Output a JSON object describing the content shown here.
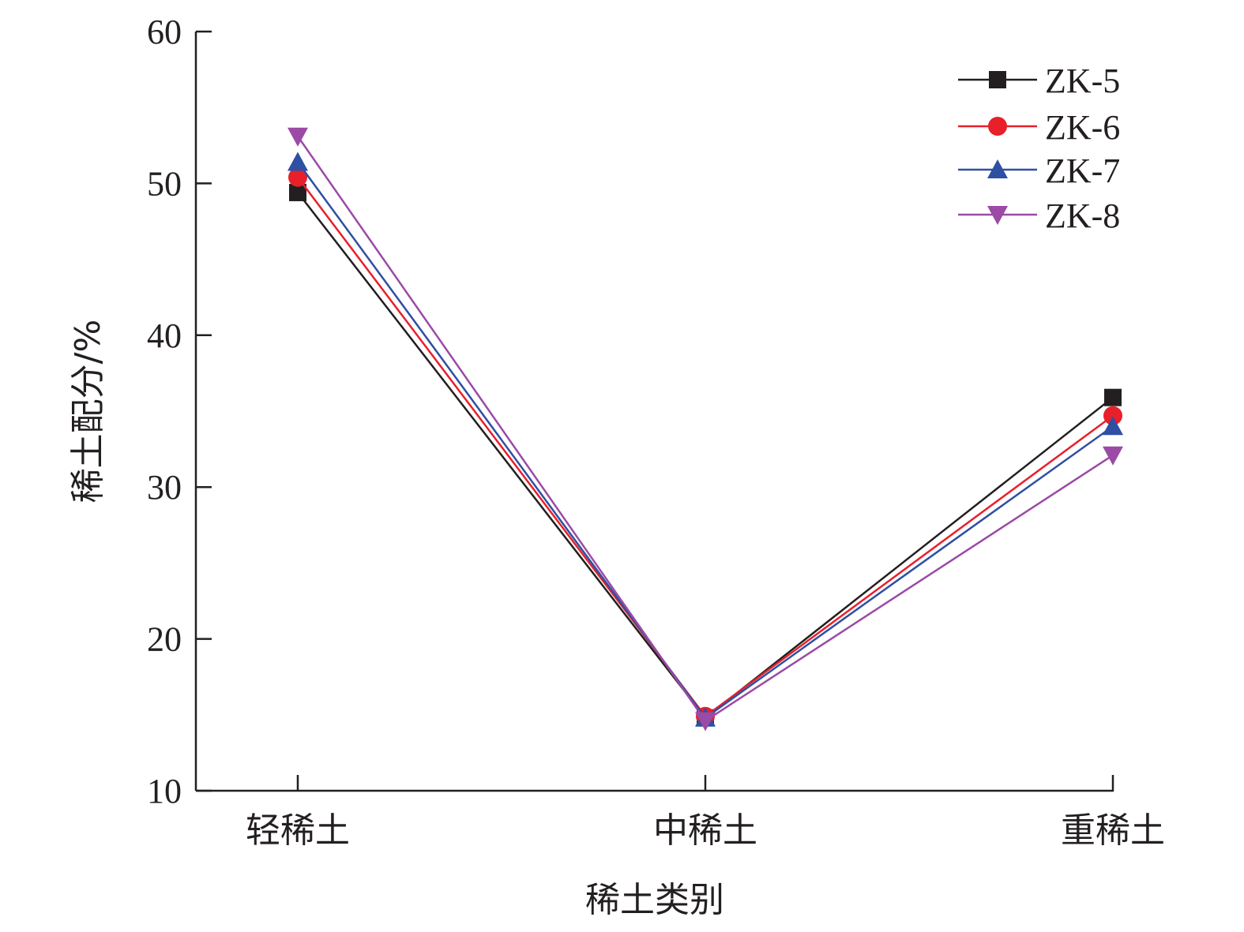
{
  "chart_data": {
    "type": "line",
    "title": "",
    "xlabel": "稀土类别",
    "ylabel": "稀土配分/%",
    "categories": [
      "轻稀土",
      "中稀土",
      "重稀土"
    ],
    "ylim": [
      10,
      60
    ],
    "yticks": [
      10,
      20,
      30,
      40,
      50,
      60
    ],
    "grid": false,
    "legend_position": "top-right",
    "series": [
      {
        "name": "ZK-5",
        "values": [
          49.4,
          14.8,
          35.9
        ],
        "color": "#231f20",
        "marker": "square"
      },
      {
        "name": "ZK-6",
        "values": [
          50.4,
          14.9,
          34.7
        ],
        "color": "#e8202a",
        "marker": "circle"
      },
      {
        "name": "ZK-7",
        "values": [
          51.4,
          14.8,
          34.0
        ],
        "color": "#2e4fa3",
        "marker": "triangle-up"
      },
      {
        "name": "ZK-8",
        "values": [
          53.1,
          14.6,
          32.1
        ],
        "color": "#9b4aa6",
        "marker": "triangle-down"
      }
    ]
  }
}
